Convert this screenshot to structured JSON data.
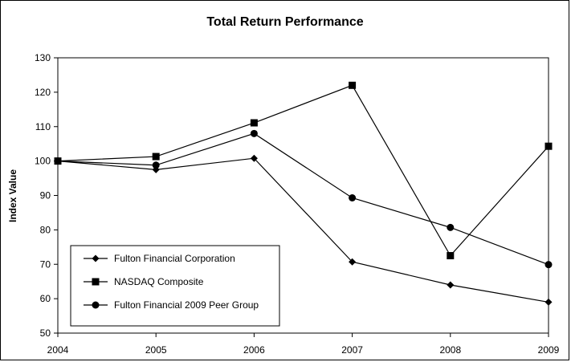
{
  "chart_data": {
    "type": "line",
    "title": "Total Return Performance",
    "xlabel": "",
    "ylabel": "Index Value",
    "categories": [
      "2004",
      "2005",
      "2006",
      "2007",
      "2008",
      "2009"
    ],
    "ylim": [
      50,
      130
    ],
    "yticks": [
      50,
      60,
      70,
      80,
      90,
      100,
      110,
      120,
      130
    ],
    "grid": false,
    "legend_position": "bottom-left",
    "series": [
      {
        "name": "Fulton Financial Corporation",
        "marker": "diamond",
        "color": "#000000",
        "values": [
          100,
          97.5,
          100.8,
          70.7,
          64,
          59
        ]
      },
      {
        "name": "NASDAQ Composite",
        "marker": "square",
        "color": "#000000",
        "values": [
          100,
          101.3,
          111.1,
          122,
          72.5,
          104.3
        ]
      },
      {
        "name": "Fulton Financial 2009 Peer Group",
        "marker": "circle",
        "color": "#000000",
        "values": [
          100,
          98.8,
          108,
          89.3,
          80.7,
          69.9
        ]
      }
    ]
  }
}
